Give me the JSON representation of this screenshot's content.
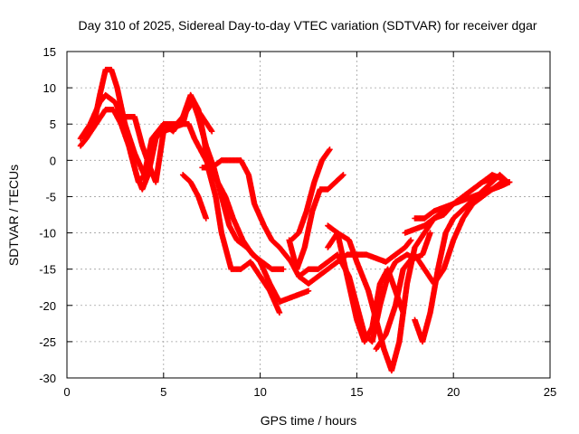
{
  "chart_data": {
    "type": "scatter",
    "title": "Day 310 of 2025, Sidereal Day-to-day VTEC variation (SDTVAR) for receiver dgar",
    "xlabel": "GPS time / hours",
    "ylabel": "SDTVAR / TECUs",
    "xlim": [
      0,
      25
    ],
    "ylim": [
      -30,
      15
    ],
    "xticks": [
      0,
      5,
      10,
      15,
      20,
      25
    ],
    "yticks": [
      -30,
      -25,
      -20,
      -15,
      -10,
      -5,
      0,
      5,
      10,
      15
    ],
    "grid": true,
    "marker": "plus",
    "color": "#ff0000",
    "series": [
      {
        "points": [
          [
            0.7,
            2
          ],
          [
            1.0,
            3
          ],
          [
            1.4,
            5
          ],
          [
            1.7,
            9
          ],
          [
            2.0,
            12.5
          ],
          [
            2.3,
            12.5
          ],
          [
            2.6,
            10
          ],
          [
            3.0,
            5
          ],
          [
            3.3,
            1
          ],
          [
            3.7,
            -3
          ],
          [
            4.0,
            -2
          ],
          [
            4.4,
            2
          ],
          [
            5.0,
            5
          ],
          [
            5.5,
            4
          ],
          [
            6.0,
            6
          ],
          [
            6.4,
            9
          ],
          [
            6.8,
            7
          ],
          [
            7.1,
            3
          ],
          [
            7.3,
            -1
          ],
          [
            7.7,
            -5
          ],
          [
            8.0,
            -10
          ],
          [
            8.5,
            -15
          ],
          [
            9.0,
            -15
          ],
          [
            9.5,
            -14
          ],
          [
            10.0,
            -16
          ],
          [
            10.5,
            -18
          ],
          [
            11.0,
            -21
          ]
        ]
      },
      {
        "points": [
          [
            0.7,
            3
          ],
          [
            1.2,
            5
          ],
          [
            1.7,
            8
          ],
          [
            2.0,
            9
          ],
          [
            2.5,
            8
          ],
          [
            3.0,
            5
          ],
          [
            3.5,
            1
          ],
          [
            4.0,
            -2
          ],
          [
            4.4,
            3
          ],
          [
            5.0,
            5
          ],
          [
            5.5,
            4.5
          ],
          [
            6.0,
            5
          ],
          [
            6.4,
            9
          ],
          [
            6.8,
            6
          ],
          [
            7.2,
            2
          ],
          [
            7.6,
            -1
          ],
          [
            8.0,
            -5
          ],
          [
            8.4,
            -9
          ],
          [
            8.8,
            -11
          ],
          [
            9.3,
            -12
          ],
          [
            10.0,
            -14
          ],
          [
            10.5,
            -17
          ],
          [
            11.0,
            -19.5
          ],
          [
            11.5,
            -19
          ],
          [
            12.0,
            -18.5
          ],
          [
            12.5,
            -18
          ]
        ]
      },
      {
        "points": [
          [
            1.0,
            3
          ],
          [
            1.5,
            5
          ],
          [
            2.0,
            7
          ],
          [
            2.4,
            7
          ],
          [
            2.8,
            5
          ],
          [
            3.2,
            2
          ],
          [
            3.6,
            -2
          ],
          [
            3.9,
            -4
          ],
          [
            4.2,
            -2
          ],
          [
            4.6,
            3
          ],
          [
            5.0,
            5
          ],
          [
            5.5,
            5
          ],
          [
            6.0,
            5
          ],
          [
            6.3,
            5
          ],
          [
            6.6,
            3
          ],
          [
            7.0,
            1
          ],
          [
            7.4,
            -1
          ],
          [
            7.8,
            -3
          ],
          [
            8.2,
            -5
          ],
          [
            8.6,
            -8
          ],
          [
            9.1,
            -11
          ],
          [
            9.6,
            -13
          ],
          [
            10.1,
            -14
          ],
          [
            10.6,
            -15
          ],
          [
            11.2,
            -15
          ]
        ]
      },
      {
        "points": [
          [
            3.0,
            6
          ],
          [
            3.5,
            6
          ],
          [
            3.9,
            2
          ],
          [
            4.3,
            -1
          ],
          [
            4.6,
            -3
          ],
          [
            5.0,
            4
          ],
          [
            5.5,
            4.5
          ],
          [
            6.0,
            6
          ],
          [
            6.5,
            8
          ],
          [
            7.0,
            6
          ],
          [
            7.5,
            4
          ]
        ]
      },
      {
        "points": [
          [
            6.0,
            -2
          ],
          [
            6.4,
            -3
          ],
          [
            6.8,
            -5
          ],
          [
            7.2,
            -8
          ]
        ]
      },
      {
        "points": [
          [
            7.0,
            -1
          ],
          [
            7.5,
            -1
          ],
          [
            8.0,
            0
          ],
          [
            8.5,
            0
          ],
          [
            9.0,
            0
          ],
          [
            9.4,
            -2
          ],
          [
            9.7,
            -6
          ],
          [
            10.2,
            -9
          ],
          [
            10.6,
            -11
          ],
          [
            11.0,
            -12
          ],
          [
            11.6,
            -14
          ],
          [
            12.0,
            -16
          ],
          [
            12.5,
            -17
          ],
          [
            13.0,
            -16
          ],
          [
            13.5,
            -15
          ],
          [
            14.0,
            -14
          ],
          [
            14.5,
            -13
          ],
          [
            15.0,
            -13
          ],
          [
            15.5,
            -13
          ],
          [
            16.0,
            -13.5
          ],
          [
            16.5,
            -14
          ],
          [
            17.0,
            -13
          ],
          [
            17.5,
            -12
          ],
          [
            17.8,
            -11
          ]
        ]
      },
      {
        "points": [
          [
            11.5,
            -11
          ],
          [
            11.9,
            -15
          ],
          [
            12.3,
            -12
          ],
          [
            12.7,
            -7
          ],
          [
            13.1,
            -4
          ],
          [
            13.5,
            -4
          ],
          [
            13.9,
            -3
          ],
          [
            14.3,
            -2
          ]
        ]
      },
      {
        "points": [
          [
            11.6,
            -11
          ],
          [
            12.0,
            -10
          ],
          [
            12.4,
            -7
          ],
          [
            12.8,
            -3
          ],
          [
            13.2,
            0
          ],
          [
            13.6,
            1.5
          ]
        ]
      },
      {
        "points": [
          [
            12.0,
            -16
          ],
          [
            12.5,
            -15
          ],
          [
            13.0,
            -15
          ],
          [
            13.5,
            -14
          ],
          [
            14.0,
            -13
          ],
          [
            14.6,
            -16
          ],
          [
            15.0,
            -20
          ],
          [
            15.4,
            -24
          ],
          [
            15.8,
            -25
          ],
          [
            16.2,
            -20
          ],
          [
            16.6,
            -16
          ],
          [
            17.0,
            -14
          ],
          [
            17.6,
            -13
          ],
          [
            18.0,
            -13.5
          ],
          [
            18.4,
            -13
          ],
          [
            18.8,
            -10
          ]
        ]
      },
      {
        "points": [
          [
            13.5,
            -9
          ],
          [
            14.0,
            -10
          ],
          [
            14.5,
            -16
          ],
          [
            15.0,
            -22
          ],
          [
            15.4,
            -25
          ],
          [
            15.8,
            -23
          ],
          [
            16.2,
            -17
          ],
          [
            16.6,
            -15
          ],
          [
            17.0,
            -18
          ],
          [
            17.4,
            -21
          ]
        ]
      },
      {
        "points": [
          [
            13.5,
            -12
          ],
          [
            14.0,
            -10
          ],
          [
            14.6,
            -11
          ],
          [
            15.0,
            -14
          ],
          [
            15.6,
            -18
          ],
          [
            16.0,
            -22
          ],
          [
            16.4,
            -26
          ],
          [
            16.8,
            -29
          ],
          [
            17.2,
            -25
          ],
          [
            17.6,
            -17
          ],
          [
            18.0,
            -12
          ],
          [
            18.5,
            -10
          ],
          [
            19.0,
            -8
          ],
          [
            19.5,
            -7
          ],
          [
            20.0,
            -6
          ],
          [
            20.5,
            -5.5
          ],
          [
            21.0,
            -5
          ],
          [
            21.5,
            -4.5
          ],
          [
            22.0,
            -4
          ],
          [
            22.5,
            -3.5
          ],
          [
            22.9,
            -3
          ]
        ]
      },
      {
        "points": [
          [
            16.0,
            -26
          ],
          [
            16.5,
            -24
          ],
          [
            17.0,
            -20
          ],
          [
            17.4,
            -15
          ],
          [
            18.0,
            -13
          ],
          [
            18.5,
            -15
          ],
          [
            19.0,
            -17
          ],
          [
            19.5,
            -15
          ],
          [
            20.0,
            -11
          ],
          [
            20.5,
            -8
          ],
          [
            21.0,
            -6
          ],
          [
            21.5,
            -5
          ],
          [
            22.0,
            -4
          ],
          [
            22.5,
            -3
          ],
          [
            22.9,
            -3
          ]
        ]
      },
      {
        "points": [
          [
            17.5,
            -10
          ],
          [
            18.0,
            -9.5
          ],
          [
            18.5,
            -9
          ],
          [
            19.0,
            -8
          ],
          [
            19.5,
            -7.5
          ],
          [
            20.0,
            -6
          ],
          [
            20.5,
            -5
          ],
          [
            21.0,
            -4
          ],
          [
            21.5,
            -3
          ],
          [
            22.0,
            -2
          ],
          [
            22.5,
            -2.5
          ]
        ]
      },
      {
        "points": [
          [
            18.0,
            -22
          ],
          [
            18.4,
            -25
          ],
          [
            18.8,
            -21
          ],
          [
            19.2,
            -15
          ],
          [
            19.6,
            -10
          ],
          [
            20.0,
            -8
          ],
          [
            20.4,
            -7
          ],
          [
            20.8,
            -6
          ],
          [
            21.2,
            -5
          ],
          [
            21.6,
            -4
          ],
          [
            22.0,
            -3
          ],
          [
            22.4,
            -2
          ],
          [
            22.8,
            -3
          ]
        ]
      },
      {
        "points": [
          [
            18.0,
            -8
          ],
          [
            18.5,
            -8
          ],
          [
            19.0,
            -7
          ],
          [
            19.5,
            -6.5
          ],
          [
            20.0,
            -6
          ],
          [
            20.5,
            -5
          ],
          [
            21.0,
            -4
          ],
          [
            21.5,
            -3
          ],
          [
            22.0,
            -2.5
          ]
        ]
      }
    ]
  }
}
